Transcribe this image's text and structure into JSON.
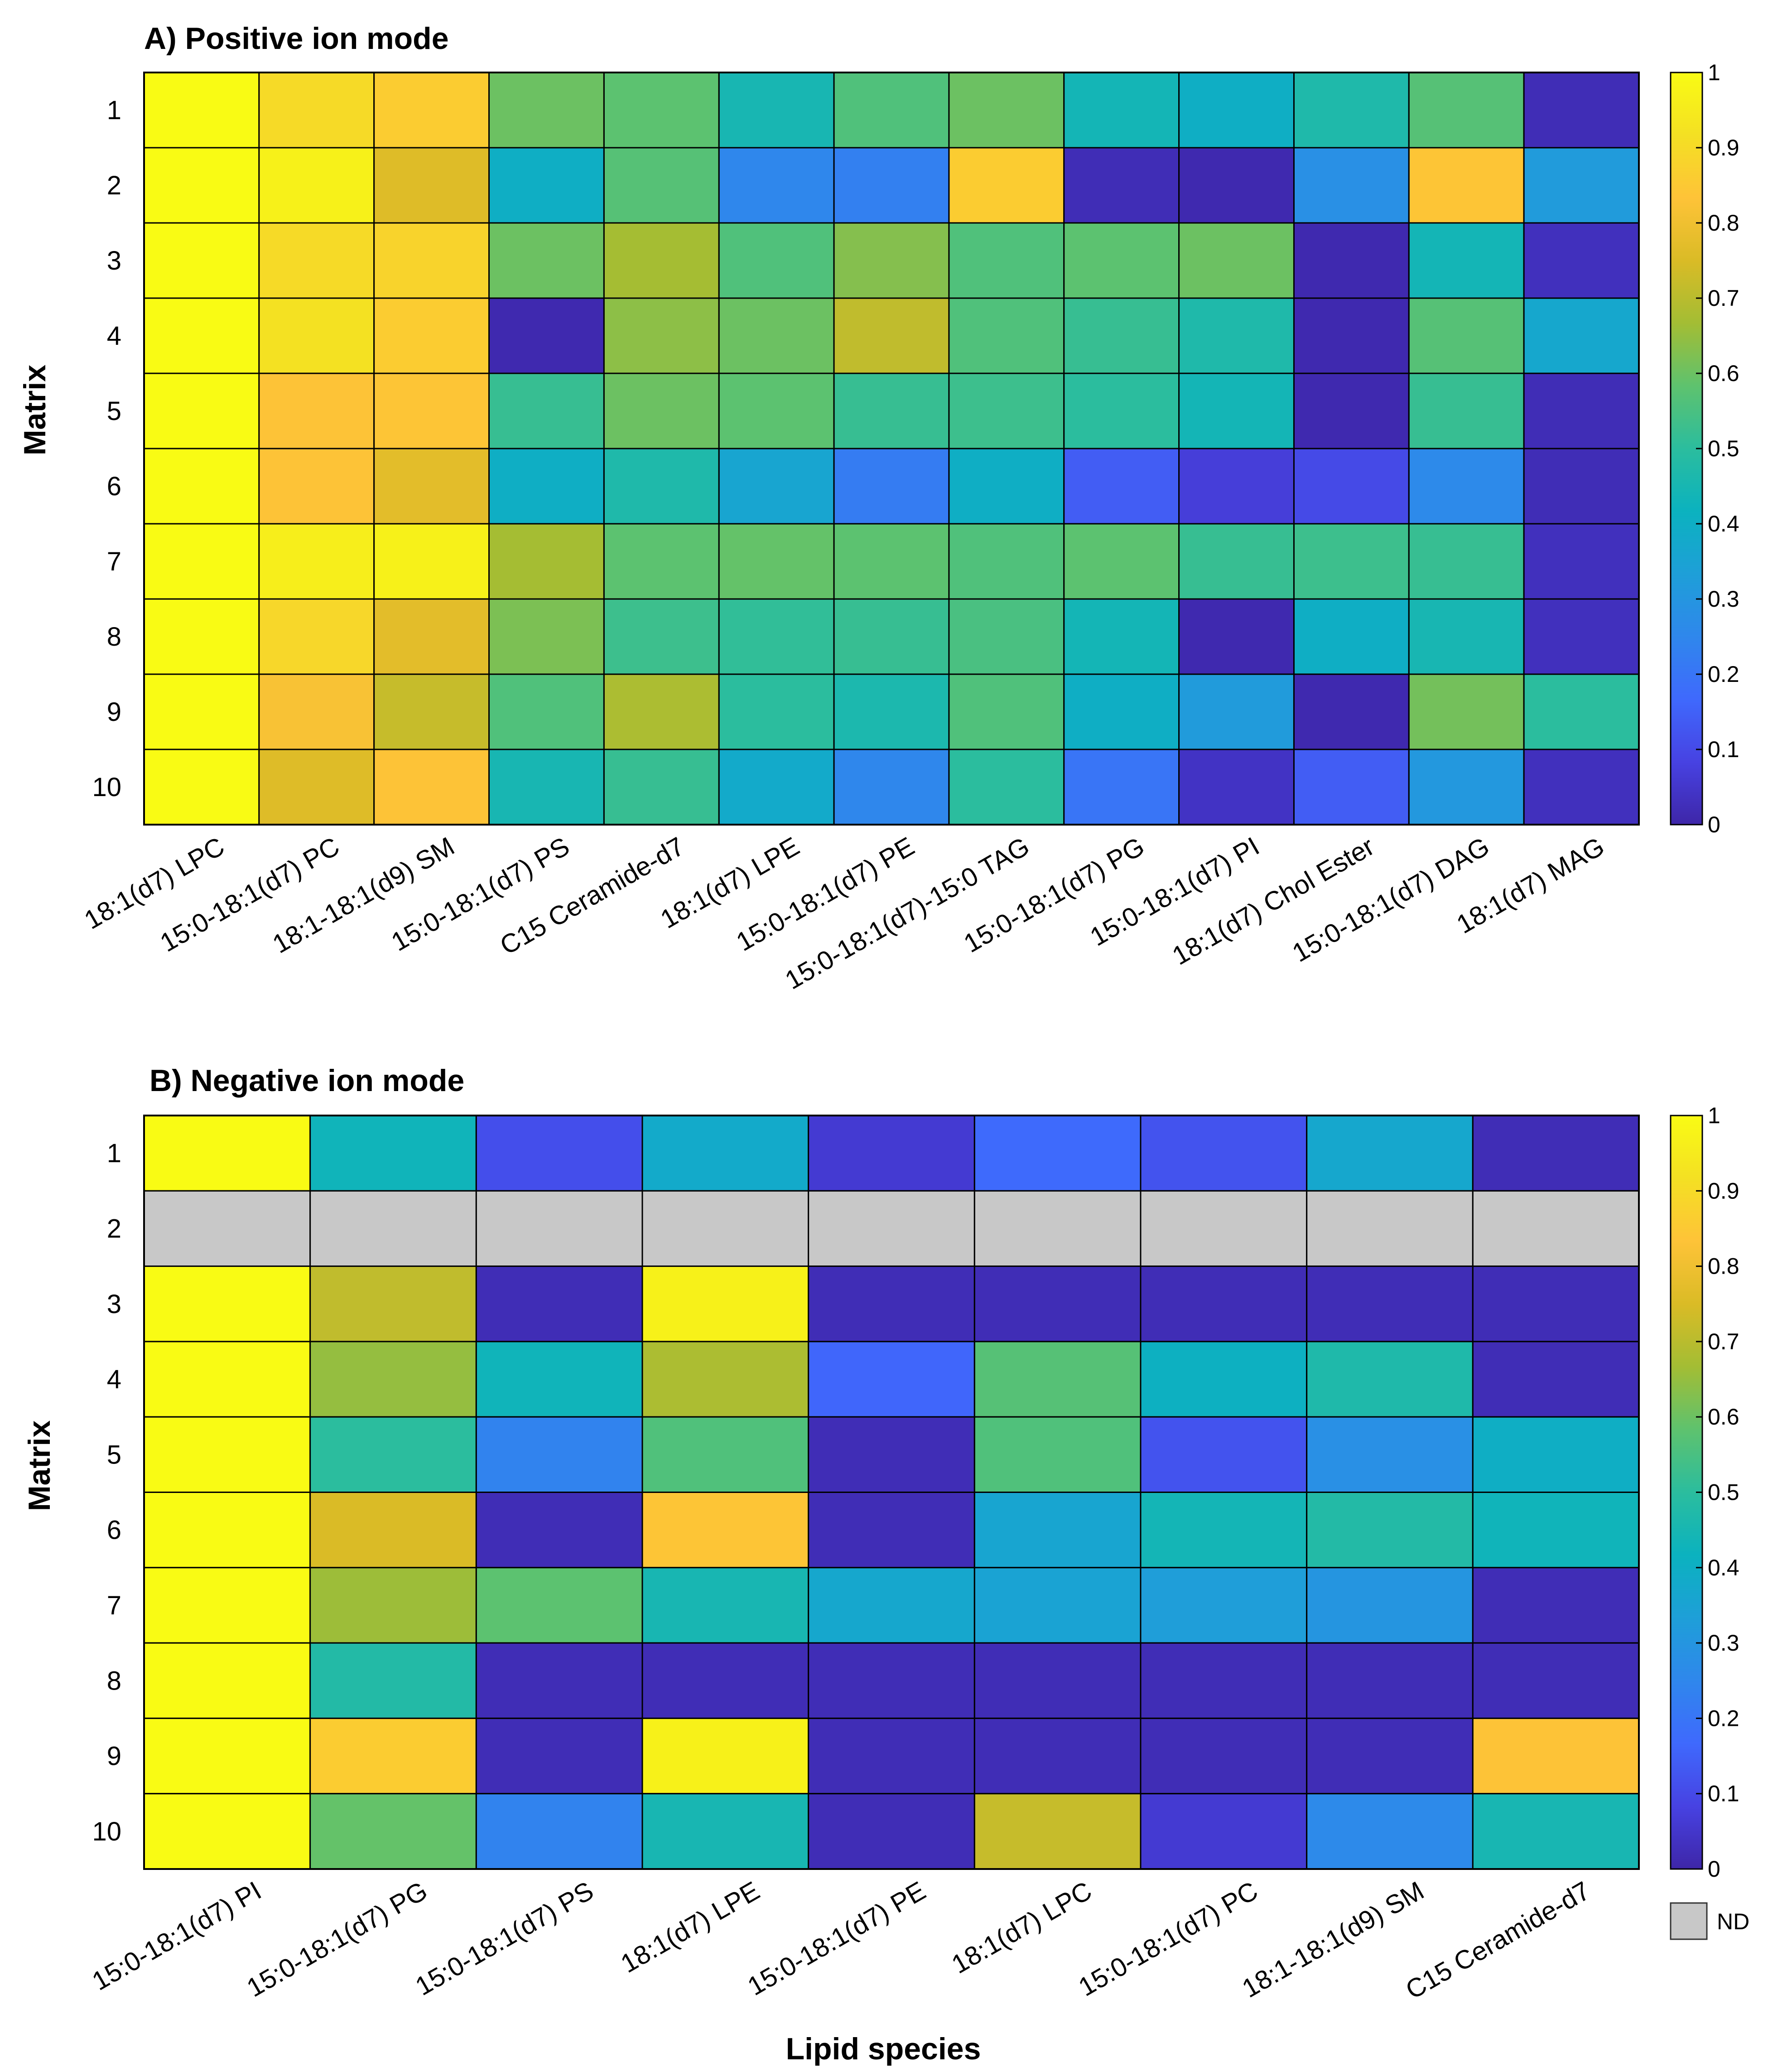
{
  "chart_data": [
    {
      "type": "heatmap",
      "title": "A) Positive ion mode",
      "ylabel": "Matrix",
      "xlabel": "",
      "rows": [
        "1",
        "2",
        "3",
        "4",
        "5",
        "6",
        "7",
        "8",
        "9",
        "10"
      ],
      "columns": [
        "18:1(d7) LPC",
        "15:0-18:1(d7) PC",
        "18:1-18:1(d9) SM",
        "15:0-18:1(d7) PS",
        "C15 Ceramide-d7",
        "18:1(d7) LPE",
        "15:0-18:1(d7) PE",
        "15:0-18:1(d7)-15:0 TAG",
        "15:0-18:1(d7) PG",
        "15:0-18:1(d7) PI",
        "18:1(d7) Chol Ester",
        "15:0-18:1(d7) DAG",
        "18:1(d7) MAG"
      ],
      "values": [
        [
          1.0,
          0.9,
          0.86,
          0.6,
          0.58,
          0.45,
          0.56,
          0.6,
          0.44,
          0.4,
          0.47,
          0.57,
          0.02
        ],
        [
          1.0,
          0.97,
          0.76,
          0.4,
          0.57,
          0.25,
          0.23,
          0.86,
          0.02,
          0.01,
          0.28,
          0.84,
          0.32
        ],
        [
          1.0,
          0.9,
          0.88,
          0.6,
          0.67,
          0.56,
          0.63,
          0.56,
          0.58,
          0.6,
          0.01,
          0.44,
          0.03
        ],
        [
          1.0,
          0.92,
          0.86,
          0.01,
          0.64,
          0.6,
          0.71,
          0.56,
          0.52,
          0.47,
          0.01,
          0.57,
          0.37
        ],
        [
          1.0,
          0.83,
          0.84,
          0.52,
          0.6,
          0.58,
          0.52,
          0.53,
          0.5,
          0.44,
          0.01,
          0.52,
          0.02
        ],
        [
          1.0,
          0.83,
          0.77,
          0.4,
          0.47,
          0.36,
          0.22,
          0.4,
          0.14,
          0.07,
          0.1,
          0.26,
          0.02
        ],
        [
          1.0,
          0.96,
          0.97,
          0.67,
          0.58,
          0.59,
          0.58,
          0.56,
          0.58,
          0.52,
          0.53,
          0.52,
          0.03
        ],
        [
          1.0,
          0.89,
          0.77,
          0.62,
          0.53,
          0.51,
          0.52,
          0.55,
          0.44,
          0.01,
          0.4,
          0.45,
          0.03
        ],
        [
          1.0,
          0.82,
          0.72,
          0.56,
          0.68,
          0.5,
          0.46,
          0.56,
          0.4,
          0.32,
          0.01,
          0.61,
          0.5
        ],
        [
          1.0,
          0.76,
          0.83,
          0.45,
          0.52,
          0.38,
          0.25,
          0.5,
          0.2,
          0.04,
          0.14,
          0.31,
          0.03
        ]
      ],
      "colorbar": {
        "min": 0,
        "max": 1,
        "ticks": [
          "0",
          "0.1",
          "0.2",
          "0.3",
          "0.4",
          "0.5",
          "0.6",
          "0.7",
          "0.8",
          "0.9",
          "1"
        ]
      }
    },
    {
      "type": "heatmap",
      "title": "B) Negative ion mode",
      "ylabel": "Matrix",
      "xlabel": "Lipid species",
      "rows": [
        "1",
        "2",
        "3",
        "4",
        "5",
        "6",
        "7",
        "8",
        "9",
        "10"
      ],
      "columns": [
        "15:0-18:1(d7) PI",
        "15:0-18:1(d7) PG",
        "15:0-18:1(d7) PS",
        "18:1(d7) LPE",
        "15:0-18:1(d7) PE",
        "18:1(d7) LPC",
        "15:0-18:1(d7) PC",
        "18:1-18:1(d9) SM",
        "C15 Ceramide-d7"
      ],
      "values": [
        [
          1.0,
          0.43,
          0.11,
          0.38,
          0.06,
          0.17,
          0.12,
          0.37,
          0.02
        ],
        [
          null,
          null,
          null,
          null,
          null,
          null,
          null,
          null,
          null
        ],
        [
          1.0,
          0.71,
          0.02,
          0.97,
          0.02,
          0.02,
          0.02,
          0.02,
          0.02
        ],
        [
          1.0,
          0.65,
          0.43,
          0.68,
          0.16,
          0.57,
          0.41,
          0.47,
          0.02
        ],
        [
          1.0,
          0.5,
          0.24,
          0.56,
          0.02,
          0.56,
          0.12,
          0.28,
          0.4
        ],
        [
          1.0,
          0.75,
          0.02,
          0.84,
          0.02,
          0.36,
          0.44,
          0.48,
          0.43
        ],
        [
          1.0,
          0.66,
          0.58,
          0.45,
          0.37,
          0.35,
          0.33,
          0.3,
          0.02
        ],
        [
          1.0,
          0.48,
          0.02,
          0.02,
          0.02,
          0.02,
          0.02,
          0.02,
          0.02
        ],
        [
          1.0,
          0.86,
          0.02,
          0.97,
          0.02,
          0.02,
          0.02,
          0.02,
          0.83
        ],
        [
          1.0,
          0.59,
          0.24,
          0.45,
          0.02,
          0.72,
          0.06,
          0.26,
          0.45
        ]
      ],
      "colorbar": {
        "min": 0,
        "max": 1,
        "ticks": [
          "0",
          "0.1",
          "0.2",
          "0.3",
          "0.4",
          "0.5",
          "0.6",
          "0.7",
          "0.8",
          "0.9",
          "1"
        ]
      },
      "legend": {
        "nd_label": "ND",
        "nd_color": "#c8c8c8"
      }
    }
  ],
  "colormap": [
    "#3e26a8",
    "#4742e2",
    "#3f69fd",
    "#2f87ec",
    "#1e9fd8",
    "#0bb2bf",
    "#2bbd9e",
    "#5ec26e",
    "#a3bd34",
    "#dabb26",
    "#fec338",
    "#f4e023",
    "#f9fb14"
  ]
}
